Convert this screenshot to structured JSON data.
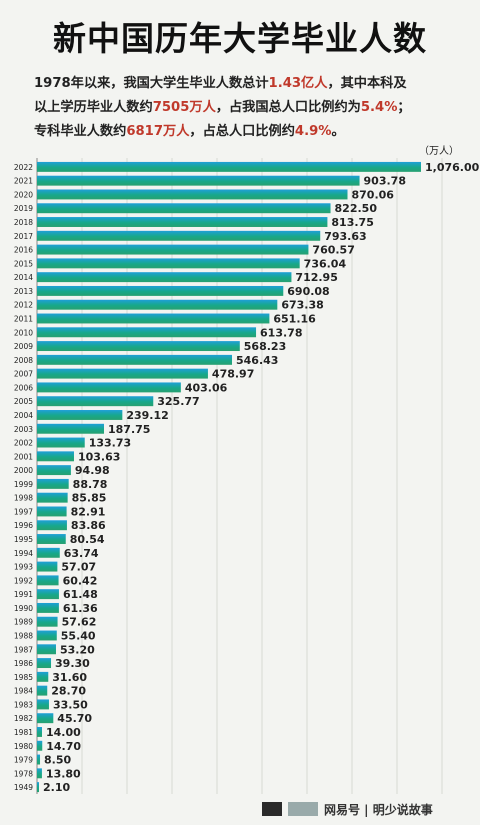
{
  "title": "新中国历年大学毕业人数",
  "subtitle": {
    "line1_a": "1978年以来，我国大学生毕业人数总计",
    "line1_b": "1.43亿人",
    "line1_c": "，其中本科及",
    "line2_a": "以上学历毕业人数约",
    "line2_b": "7505万人",
    "line2_c": "，占我国总人口比例约为",
    "line2_d": "5.4%",
    "line2_e": "；",
    "line3_a": "专科毕业人数约",
    "line3_b": "6817万人",
    "line3_c": "，占总人口比例约",
    "line3_d": "4.9%",
    "line3_e": "。"
  },
  "unit_label": "（万人）",
  "footer": {
    "text": "网易号 | 明少说故事"
  },
  "colors": {
    "bar_top": "#1f9fd8",
    "bar_mid": "#17a88a",
    "bar_bottom": "#28a070",
    "highlight": "#c0392b"
  },
  "chart_data": {
    "type": "bar",
    "orientation": "horizontal",
    "title": "新中国历年大学毕业人数",
    "unit": "万人",
    "grid": true,
    "categories": [
      "2022",
      "2021",
      "2020",
      "2019",
      "2018",
      "2017",
      "2016",
      "2015",
      "2014",
      "2013",
      "2012",
      "2011",
      "2010",
      "2009",
      "2008",
      "2007",
      "2006",
      "2005",
      "2004",
      "2003",
      "2002",
      "2001",
      "2000",
      "1999",
      "1998",
      "1997",
      "1996",
      "1995",
      "1994",
      "1993",
      "1992",
      "1991",
      "1990",
      "1989",
      "1988",
      "1987",
      "1986",
      "1985",
      "1984",
      "1983",
      "1982",
      "1981",
      "1980",
      "1979",
      "1978",
      "1949"
    ],
    "values": [
      1076.0,
      903.78,
      870.06,
      822.5,
      813.75,
      793.63,
      760.57,
      736.04,
      712.95,
      690.08,
      673.38,
      651.16,
      613.78,
      568.23,
      546.43,
      478.97,
      403.06,
      325.77,
      239.12,
      187.75,
      133.73,
      103.63,
      94.98,
      88.78,
      85.85,
      82.91,
      83.86,
      80.54,
      63.74,
      57.07,
      60.42,
      61.48,
      61.36,
      57.62,
      55.4,
      53.2,
      39.3,
      31.6,
      28.7,
      33.5,
      45.7,
      14.0,
      14.7,
      8.5,
      13.8,
      2.1
    ],
    "labels": [
      "1,076.00",
      "903.78",
      "870.06",
      "822.50",
      "813.75",
      "793.63",
      "760.57",
      "736.04",
      "712.95",
      "690.08",
      "673.38",
      "651.16",
      "613.78",
      "568.23",
      "546.43",
      "478.97",
      "403.06",
      "325.77",
      "239.12",
      "187.75",
      "133.73",
      "103.63",
      "94.98",
      "88.78",
      "85.85",
      "82.91",
      "83.86",
      "80.54",
      "63.74",
      "57.07",
      "60.42",
      "61.48",
      "61.36",
      "57.62",
      "55.40",
      "53.20",
      "39.30",
      "31.60",
      "28.70",
      "33.50",
      "45.70",
      "14.00",
      "14.70",
      "8.50",
      "13.80",
      "2.10"
    ]
  }
}
